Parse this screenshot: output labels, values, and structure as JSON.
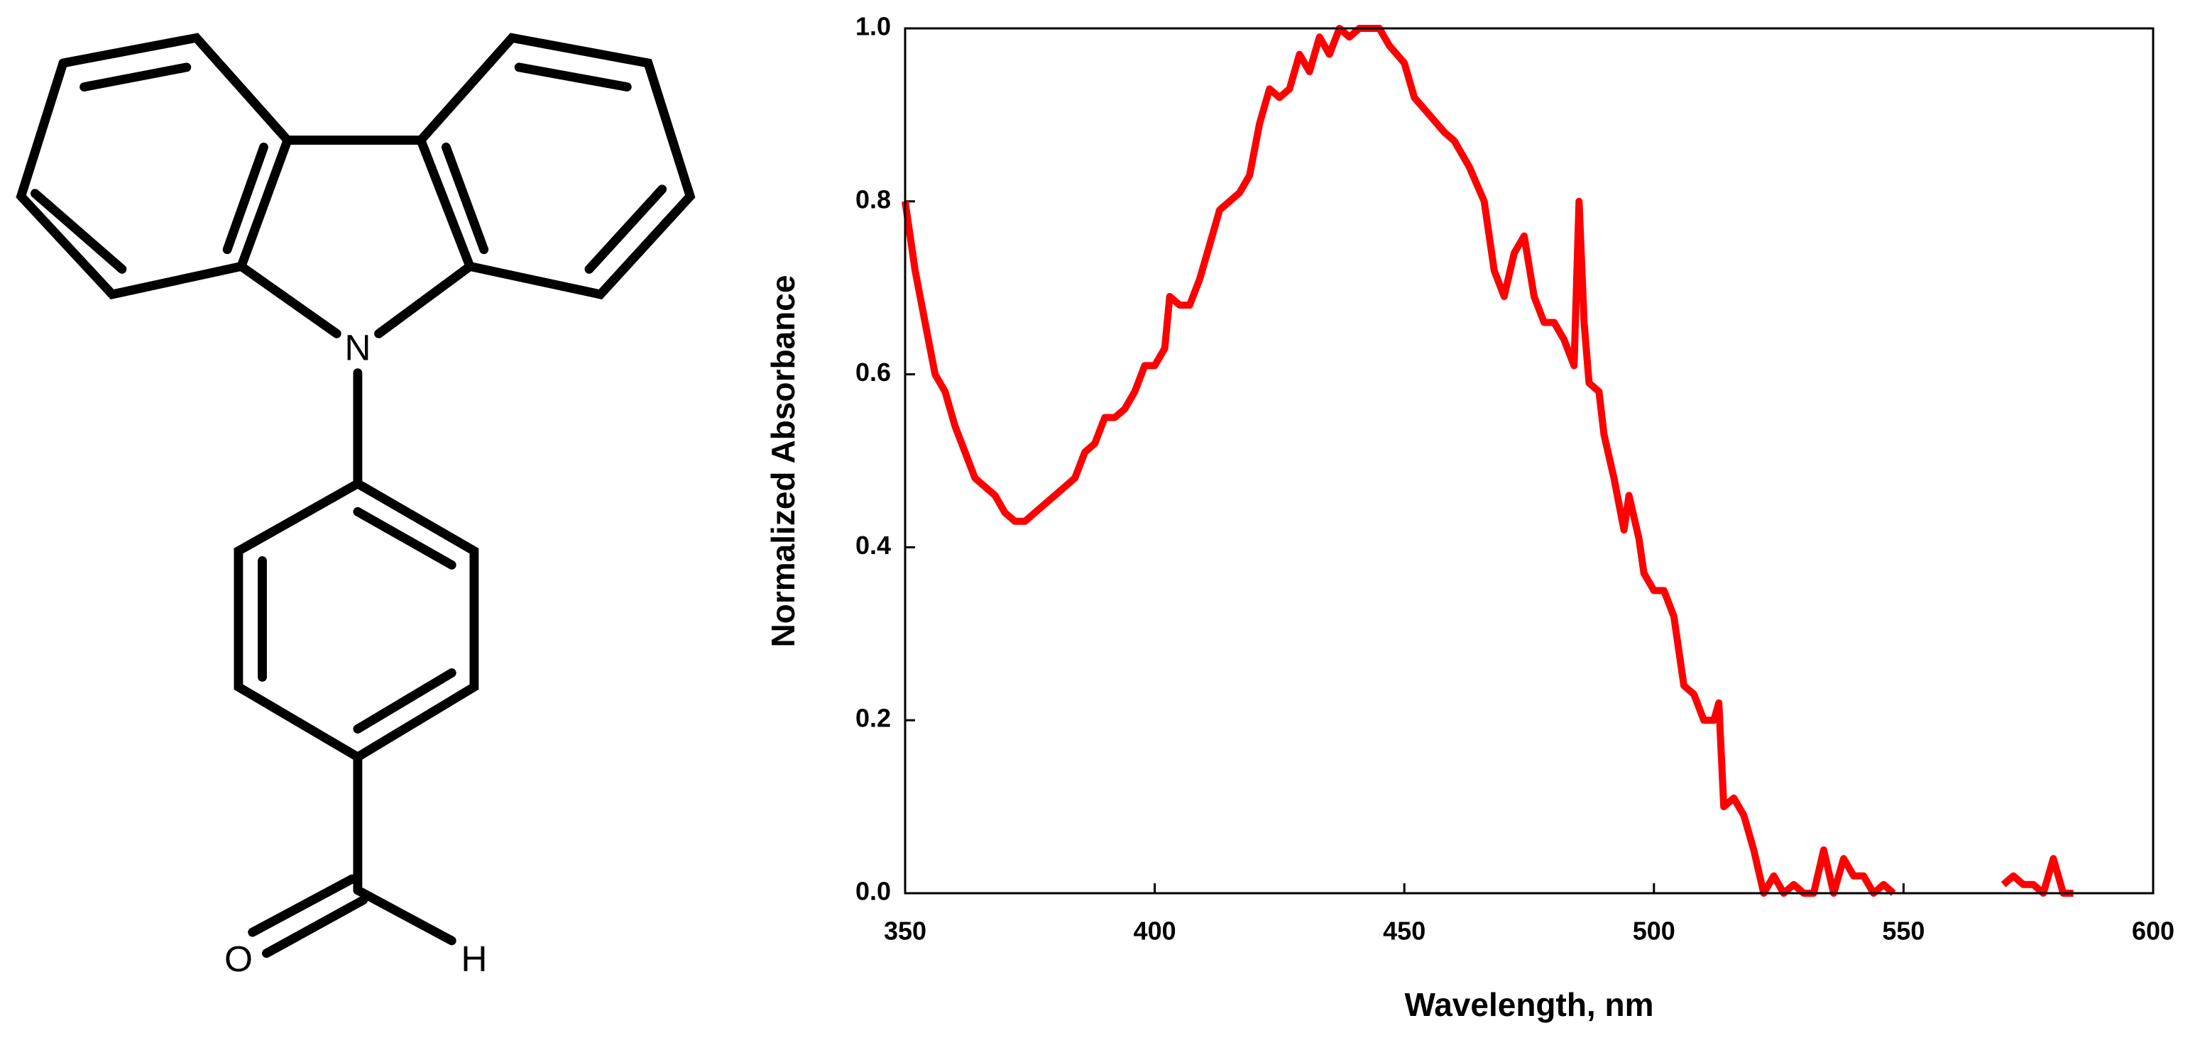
{
  "structure": {
    "atoms": [
      "N",
      "O",
      "H"
    ]
  },
  "chart_data": {
    "type": "line",
    "x_label": "Wavelength, nm",
    "y_label": "Normalized Absorbance",
    "color": "#ff0000",
    "x": [
      350,
      352,
      354,
      356,
      358,
      360,
      362,
      364,
      366,
      368,
      370,
      372,
      374,
      376,
      378,
      380,
      382,
      384,
      386,
      388,
      390,
      392,
      394,
      396,
      398,
      400,
      402,
      403,
      405,
      407,
      409,
      411,
      413,
      415,
      417,
      419,
      421,
      423,
      425,
      427,
      429,
      431,
      433,
      435,
      437,
      439,
      441,
      443,
      445,
      447,
      450,
      452,
      455,
      458,
      460,
      463,
      466,
      468,
      470,
      472,
      474,
      476,
      478,
      480,
      482,
      484,
      485,
      486,
      487,
      489,
      490,
      492,
      494,
      495,
      497,
      498,
      500,
      502,
      504,
      506,
      508,
      510,
      512,
      513,
      514,
      516,
      518,
      520,
      522,
      524,
      526,
      528,
      530,
      532,
      534,
      536,
      538,
      540,
      542,
      544,
      546,
      548,
      560,
      570,
      572,
      574,
      576,
      578,
      580,
      582,
      584
    ],
    "values": [
      0.8,
      0.72,
      0.66,
      0.6,
      0.58,
      0.54,
      0.51,
      0.48,
      0.47,
      0.46,
      0.44,
      0.43,
      0.43,
      0.44,
      0.45,
      0.46,
      0.47,
      0.48,
      0.51,
      0.52,
      0.55,
      0.55,
      0.56,
      0.58,
      0.61,
      0.61,
      0.63,
      0.69,
      0.68,
      0.68,
      0.71,
      0.75,
      0.79,
      0.8,
      0.81,
      0.83,
      0.89,
      0.93,
      0.92,
      0.93,
      0.97,
      0.95,
      0.99,
      0.97,
      1.0,
      0.99,
      1.0,
      1.0,
      1.0,
      0.98,
      0.96,
      0.92,
      0.9,
      0.88,
      0.87,
      0.84,
      0.8,
      0.72,
      0.69,
      0.74,
      0.76,
      0.69,
      0.66,
      0.66,
      0.64,
      0.61,
      0.8,
      0.66,
      0.59,
      0.58,
      0.53,
      0.48,
      0.42,
      0.46,
      0.41,
      0.37,
      0.35,
      0.35,
      0.32,
      0.24,
      0.23,
      0.2,
      0.2,
      0.22,
      0.1,
      0.11,
      0.09,
      0.05,
      0.0,
      0.02,
      0.0,
      0.01,
      0.0,
      0.0,
      0.05,
      0.0,
      0.04,
      0.02,
      0.02,
      0.0,
      0.01,
      0.0,
      null,
      0.01,
      0.02,
      0.01,
      0.01,
      0.0,
      0.04,
      0.0,
      0.0
    ],
    "xlim": [
      350,
      600
    ],
    "xticks": [
      350,
      400,
      450,
      500,
      550,
      600
    ],
    "ylim": [
      0,
      1
    ],
    "yticks": [
      {
        "value": 0,
        "label": "0.0"
      },
      0.2,
      0.4,
      0.6,
      0.8,
      {
        "value": 1,
        "label": "1.0"
      }
    ],
    "grid": false
  }
}
